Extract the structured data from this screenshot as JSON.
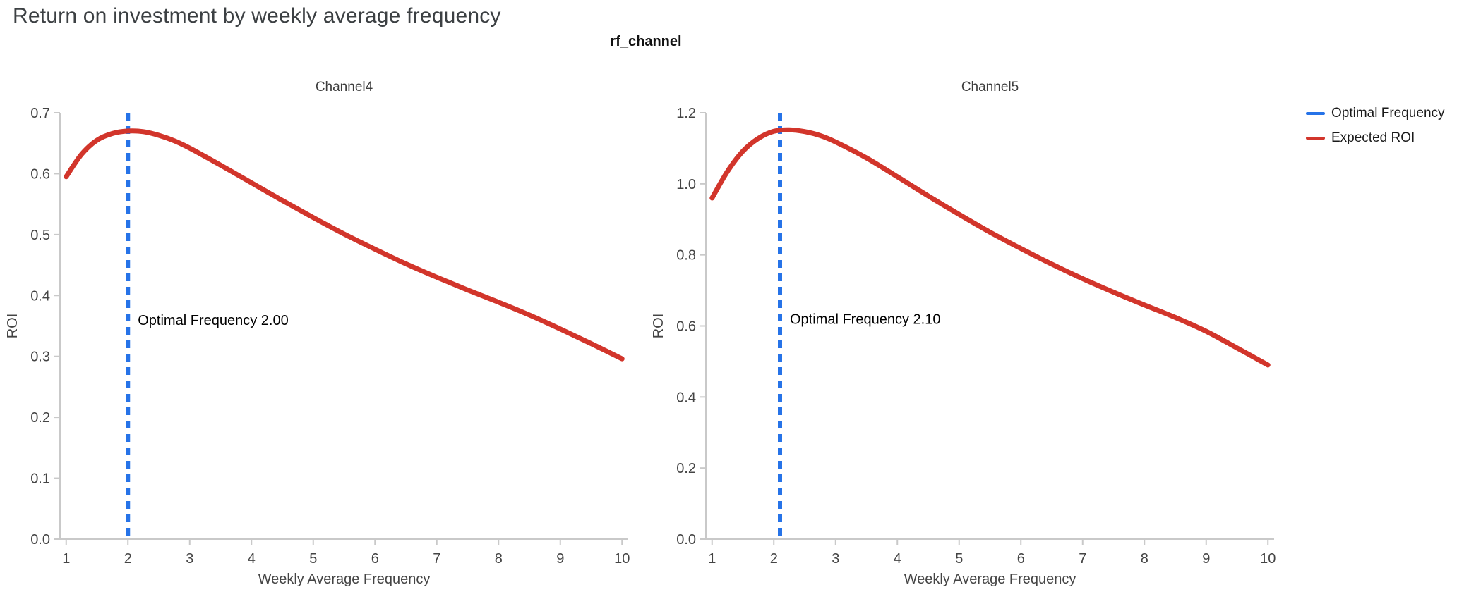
{
  "page": {
    "title": "Return on investment by weekly average frequency",
    "subtitle": "rf_channel"
  },
  "legend": {
    "items": [
      {
        "label": "Optimal Frequency",
        "color": "#2673e8"
      },
      {
        "label": "Expected ROI",
        "color": "#d2352b"
      }
    ]
  },
  "style": {
    "curve_color": "#d2352b",
    "optimal_line_color": "#2673e8",
    "axis_color": "#c9c9c9",
    "tick_label_color": "#444444",
    "axis_title_color": "#444444",
    "subplot_title_color": "#3c3c3c",
    "annotation_color": "#000000"
  },
  "chart_data": [
    {
      "type": "line",
      "title": "Channel4",
      "xlabel": "Weekly Average Frequency",
      "ylabel": "ROI",
      "xlim": [
        0.9,
        10.1
      ],
      "ylim": [
        0,
        0.7
      ],
      "xticks": [
        1,
        2,
        3,
        4,
        5,
        6,
        7,
        8,
        9,
        10
      ],
      "ytick_values": [
        0,
        0.1,
        0.2,
        0.3,
        0.4,
        0.5,
        0.6,
        0.7
      ],
      "ytick_labels": [
        "0.0",
        "0.1",
        "0.2",
        "0.3",
        "0.4",
        "0.5",
        "0.6",
        "0.7"
      ],
      "series": [
        {
          "name": "Expected ROI",
          "x": [
            1,
            1.25,
            1.5,
            1.75,
            2,
            2.25,
            2.5,
            2.75,
            3,
            3.5,
            4,
            4.5,
            5,
            5.5,
            6,
            6.5,
            7,
            7.5,
            8,
            8.5,
            9,
            9.5,
            10
          ],
          "y": [
            0.595,
            0.632,
            0.655,
            0.666,
            0.67,
            0.669,
            0.663,
            0.654,
            0.642,
            0.614,
            0.585,
            0.556,
            0.528,
            0.501,
            0.476,
            0.452,
            0.43,
            0.409,
            0.389,
            0.368,
            0.345,
            0.321,
            0.296
          ]
        }
      ],
      "optimal_frequency": 2.0,
      "annotation": {
        "text": "Optimal Frequency  2.00",
        "x": 2.0,
        "y": 0.36
      }
    },
    {
      "type": "line",
      "title": "Channel5",
      "xlabel": "Weekly Average Frequency",
      "ylabel": "ROI",
      "xlim": [
        0.9,
        10.1
      ],
      "ylim": [
        0,
        1.2
      ],
      "xticks": [
        1,
        2,
        3,
        4,
        5,
        6,
        7,
        8,
        9,
        10
      ],
      "ytick_values": [
        0,
        0.2,
        0.4,
        0.6,
        0.8,
        1.0,
        1.2
      ],
      "ytick_labels": [
        "0.0",
        "0.2",
        "0.4",
        "0.6",
        "0.8",
        "1.0",
        "1.2"
      ],
      "series": [
        {
          "name": "Expected ROI",
          "x": [
            1,
            1.25,
            1.5,
            1.75,
            2,
            2.25,
            2.5,
            2.75,
            3,
            3.5,
            4,
            4.5,
            5,
            5.5,
            6,
            6.5,
            7,
            7.5,
            8,
            8.5,
            9,
            9.5,
            10
          ],
          "y": [
            0.96,
            1.035,
            1.092,
            1.128,
            1.148,
            1.152,
            1.147,
            1.136,
            1.118,
            1.073,
            1.02,
            0.966,
            0.914,
            0.864,
            0.818,
            0.774,
            0.733,
            0.695,
            0.659,
            0.624,
            0.585,
            0.538,
            0.49
          ]
        }
      ],
      "optimal_frequency": 2.1,
      "annotation": {
        "text": "Optimal Frequency  2.10",
        "x": 2.1,
        "y": 0.62
      }
    }
  ]
}
